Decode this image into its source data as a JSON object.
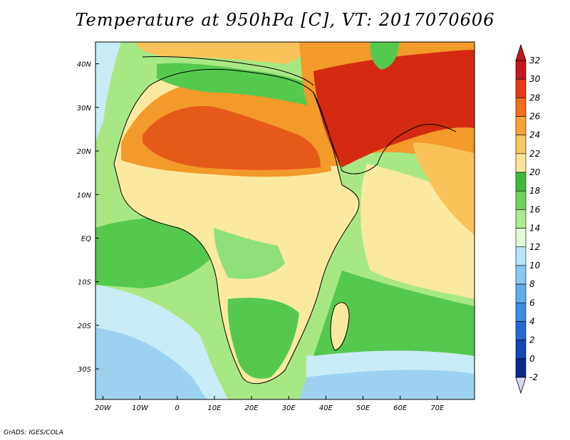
{
  "title": "Temperature at 950hPa [C], VT: 2017070606",
  "credit": "GrADS: IGES/COLA",
  "map": {
    "lon_range": [
      -22,
      80
    ],
    "lat_range": [
      -37,
      45
    ],
    "lon_labels": [
      "20W",
      "10W",
      "0",
      "10E",
      "20E",
      "30E",
      "40E",
      "50E",
      "60E",
      "70E"
    ],
    "lat_labels": [
      "40N",
      "30N",
      "20N",
      "10N",
      "EQ",
      "10S",
      "20S",
      "30S"
    ],
    "field_colors": {
      "ocean_cool": "#9cd2f0",
      "ocean_mid": "#c8ecf5",
      "green_light": "#8fe07a",
      "green": "#55c94e",
      "yellow_pale": "#fbe9a0",
      "orange_light": "#f9c35a",
      "orange": "#f29a2a",
      "red_orange": "#e55a1a",
      "red": "#d42a12"
    }
  },
  "colorbar": {
    "labels": [
      "32",
      "30",
      "28",
      "26",
      "24",
      "22",
      "20",
      "18",
      "16",
      "14",
      "12",
      "10",
      "8",
      "6",
      "4",
      "2",
      "0",
      "-2"
    ],
    "colors": [
      "#c3181a",
      "#e23b16",
      "#f2701b",
      "#f9a336",
      "#fbc65e",
      "#fde69a",
      "#3fbb3c",
      "#6fd457",
      "#a9ec8e",
      "#e3fad8",
      "#b7e5fa",
      "#87c9f4",
      "#5eaeed",
      "#3b8ee2",
      "#2369cf",
      "#1249b3",
      "#0a2a8e"
    ],
    "lower_arrow_color": "#d8d8f8",
    "upper_arrow_color": "#c3181a"
  }
}
